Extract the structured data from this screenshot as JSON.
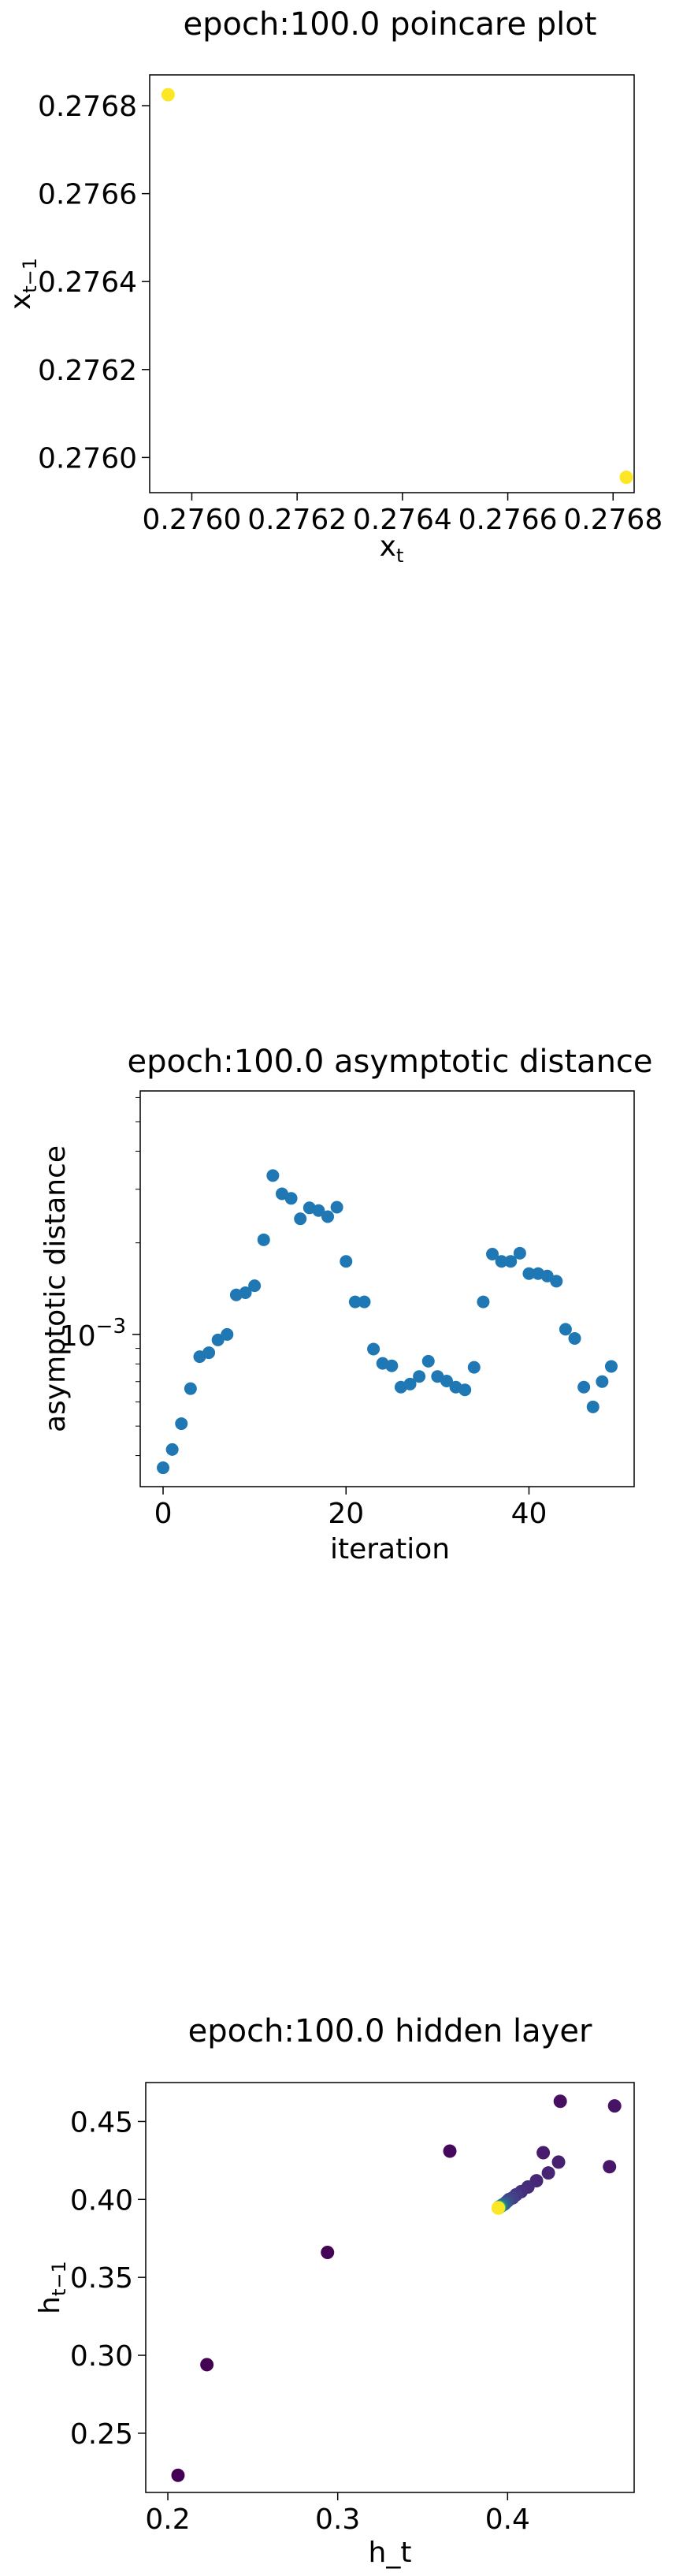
{
  "chart_data": [
    {
      "type": "scatter",
      "title": "epoch:100.0 poincare plot",
      "xlabel": "x",
      "xlabel_sub": "t",
      "ylabel": "x",
      "ylabel_sub": "t−1",
      "xlim": [
        0.27592,
        0.27684
      ],
      "ylim": [
        0.27592,
        0.27687
      ],
      "xticks": [
        0.276,
        0.2762,
        0.2764,
        0.2766,
        0.2768
      ],
      "xtick_labels": [
        "0.2760",
        "0.2762",
        "0.2764",
        "0.2766",
        "0.2768"
      ],
      "yticks": [
        0.276,
        0.2762,
        0.2764,
        0.2766,
        0.2768
      ],
      "ytick_labels": [
        "0.2760",
        "0.2762",
        "0.2764",
        "0.2766",
        "0.2768"
      ],
      "point_color": "#fde725",
      "points": [
        {
          "x": 0.275955,
          "y": 0.276825
        },
        {
          "x": 0.276825,
          "y": 0.275955
        }
      ]
    },
    {
      "type": "scatter",
      "title": "epoch:100.0 asymptotic distance",
      "xlabel": "iteration",
      "ylabel": "asymptotic distance",
      "yscale": "log",
      "xlim": [
        -2.5,
        51.5
      ],
      "ylim_log10": [
        -3.5,
        -2.2
      ],
      "xticks": [
        0,
        20,
        40
      ],
      "xtick_labels": [
        "0",
        "20",
        "40"
      ],
      "ytick_main": {
        "exp": -3,
        "base": "10",
        "sup": "−3"
      },
      "point_color": "#1f77b4",
      "x": [
        0,
        1,
        2,
        3,
        4,
        5,
        6,
        7,
        8,
        9,
        10,
        11,
        12,
        13,
        14,
        15,
        16,
        17,
        18,
        19,
        20,
        21,
        22,
        23,
        24,
        25,
        26,
        27,
        28,
        29,
        30,
        31,
        32,
        33,
        34,
        35,
        36,
        37,
        38,
        39,
        40,
        41,
        42,
        43,
        44,
        45,
        46,
        47,
        48,
        49
      ],
      "y_log10": [
        -3.438,
        -3.378,
        -3.293,
        -3.178,
        -3.073,
        -3.06,
        -3.018,
        -3.0,
        -2.87,
        -2.863,
        -2.84,
        -2.689,
        -2.478,
        -2.538,
        -2.553,
        -2.62,
        -2.584,
        -2.593,
        -2.613,
        -2.582,
        -2.76,
        -2.893,
        -2.893,
        -3.048,
        -3.095,
        -3.103,
        -3.173,
        -3.163,
        -3.138,
        -3.088,
        -3.138,
        -3.153,
        -3.173,
        -3.182,
        -3.108,
        -2.893,
        -2.736,
        -2.76,
        -2.76,
        -2.733,
        -2.8,
        -2.8,
        -2.808,
        -2.825,
        -2.983,
        -3.013,
        -3.173,
        -3.238,
        -3.155,
        -3.105
      ]
    },
    {
      "type": "scatter",
      "title": "epoch:100.0 hidden layer",
      "xlabel": "h_t",
      "ylabel": "h",
      "ylabel_sub": "t−1",
      "xlim": [
        0.187,
        0.4745
      ],
      "ylim": [
        0.212,
        0.475
      ],
      "xticks": [
        0.2,
        0.3,
        0.4
      ],
      "xtick_labels": [
        "0.2",
        "0.3",
        "0.4"
      ],
      "yticks": [
        0.25,
        0.3,
        0.35,
        0.4,
        0.45
      ],
      "ytick_labels": [
        "0.25",
        "0.30",
        "0.35",
        "0.40",
        "0.45"
      ],
      "points": [
        {
          "x": 0.206,
          "y": 0.223,
          "color": "#440154"
        },
        {
          "x": 0.223,
          "y": 0.294,
          "color": "#440154"
        },
        {
          "x": 0.294,
          "y": 0.366,
          "color": "#450457"
        },
        {
          "x": 0.366,
          "y": 0.431,
          "color": "#46085c"
        },
        {
          "x": 0.431,
          "y": 0.463,
          "color": "#470e61"
        },
        {
          "x": 0.463,
          "y": 0.46,
          "color": "#471365"
        },
        {
          "x": 0.46,
          "y": 0.421,
          "color": "#481769"
        },
        {
          "x": 0.421,
          "y": 0.43,
          "color": "#481b6d"
        },
        {
          "x": 0.43,
          "y": 0.424,
          "color": "#482071"
        },
        {
          "x": 0.424,
          "y": 0.417,
          "color": "#482475"
        },
        {
          "x": 0.417,
          "y": 0.412,
          "color": "#472878"
        },
        {
          "x": 0.412,
          "y": 0.408,
          "color": "#472c7a"
        },
        {
          "x": 0.408,
          "y": 0.405,
          "color": "#46307e"
        },
        {
          "x": 0.405,
          "y": 0.403,
          "color": "#453781"
        },
        {
          "x": 0.403,
          "y": 0.401,
          "color": "#433e85"
        },
        {
          "x": 0.401,
          "y": 0.4,
          "color": "#414487"
        },
        {
          "x": 0.4,
          "y": 0.399,
          "color": "#3e4989"
        },
        {
          "x": 0.399,
          "y": 0.398,
          "color": "#3b528b"
        },
        {
          "x": 0.398,
          "y": 0.397,
          "color": "#375a8c"
        },
        {
          "x": 0.397,
          "y": 0.3965,
          "color": "#33638d"
        },
        {
          "x": 0.3965,
          "y": 0.396,
          "color": "#2f6b8e"
        },
        {
          "x": 0.396,
          "y": 0.3957,
          "color": "#2c728e"
        },
        {
          "x": 0.3957,
          "y": 0.3955,
          "color": "#297b8e"
        },
        {
          "x": 0.3955,
          "y": 0.3953,
          "color": "#26828e"
        },
        {
          "x": 0.3953,
          "y": 0.3952,
          "color": "#23898e"
        },
        {
          "x": 0.3952,
          "y": 0.3951,
          "color": "#21918c"
        },
        {
          "x": 0.3951,
          "y": 0.395,
          "color": "#1f998a"
        },
        {
          "x": 0.395,
          "y": 0.3949,
          "color": "#20a386"
        },
        {
          "x": 0.3949,
          "y": 0.3949,
          "color": "#25ab82"
        },
        {
          "x": 0.3949,
          "y": 0.3948,
          "color": "#2eb37c"
        },
        {
          "x": 0.3948,
          "y": 0.3948,
          "color": "#3bbb75"
        },
        {
          "x": 0.3948,
          "y": 0.3947,
          "color": "#4ac16d"
        },
        {
          "x": 0.3947,
          "y": 0.3947,
          "color": "#5ec962"
        },
        {
          "x": 0.3947,
          "y": 0.3946,
          "color": "#75d054"
        },
        {
          "x": 0.3946,
          "y": 0.3946,
          "color": "#8ed645"
        },
        {
          "x": 0.3946,
          "y": 0.3946,
          "color": "#a8db34"
        },
        {
          "x": 0.3946,
          "y": 0.3945,
          "color": "#c2df23"
        },
        {
          "x": 0.3945,
          "y": 0.3945,
          "color": "#dde318"
        },
        {
          "x": 0.3945,
          "y": 0.3945,
          "color": "#fde725"
        }
      ]
    }
  ]
}
